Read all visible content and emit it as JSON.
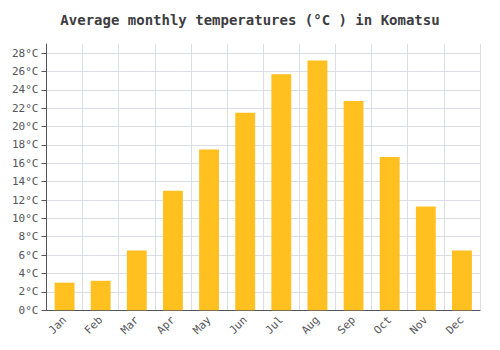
{
  "chart_data": {
    "type": "bar",
    "title": "Average monthly temperatures (°C ) in Komatsu",
    "categories": [
      "Jan",
      "Feb",
      "Mar",
      "Apr",
      "May",
      "Jun",
      "Jul",
      "Aug",
      "Sep",
      "Oct",
      "Nov",
      "Dec"
    ],
    "values": [
      3.0,
      3.2,
      6.5,
      13.0,
      17.5,
      21.5,
      25.7,
      27.2,
      22.8,
      16.7,
      11.3,
      6.5
    ],
    "color": "#FFC020",
    "ylim": [
      0,
      29
    ],
    "yticks": [
      {
        "value": 0,
        "label": "0°C"
      },
      {
        "value": 2,
        "label": "2°C"
      },
      {
        "value": 4,
        "label": "4°C"
      },
      {
        "value": 6,
        "label": "6°C"
      },
      {
        "value": 8,
        "label": "8°C"
      },
      {
        "value": 10,
        "label": "10°C"
      },
      {
        "value": 12,
        "label": "12°C"
      },
      {
        "value": 14,
        "label": "14°C"
      },
      {
        "value": 16,
        "label": "16°C"
      },
      {
        "value": 18,
        "label": "18°C"
      },
      {
        "value": 20,
        "label": "20°C"
      },
      {
        "value": 22,
        "label": "22°C"
      },
      {
        "value": 24,
        "label": "24°C"
      },
      {
        "value": 26,
        "label": "26°C"
      },
      {
        "value": 28,
        "label": "28°C"
      }
    ],
    "grid": true
  }
}
